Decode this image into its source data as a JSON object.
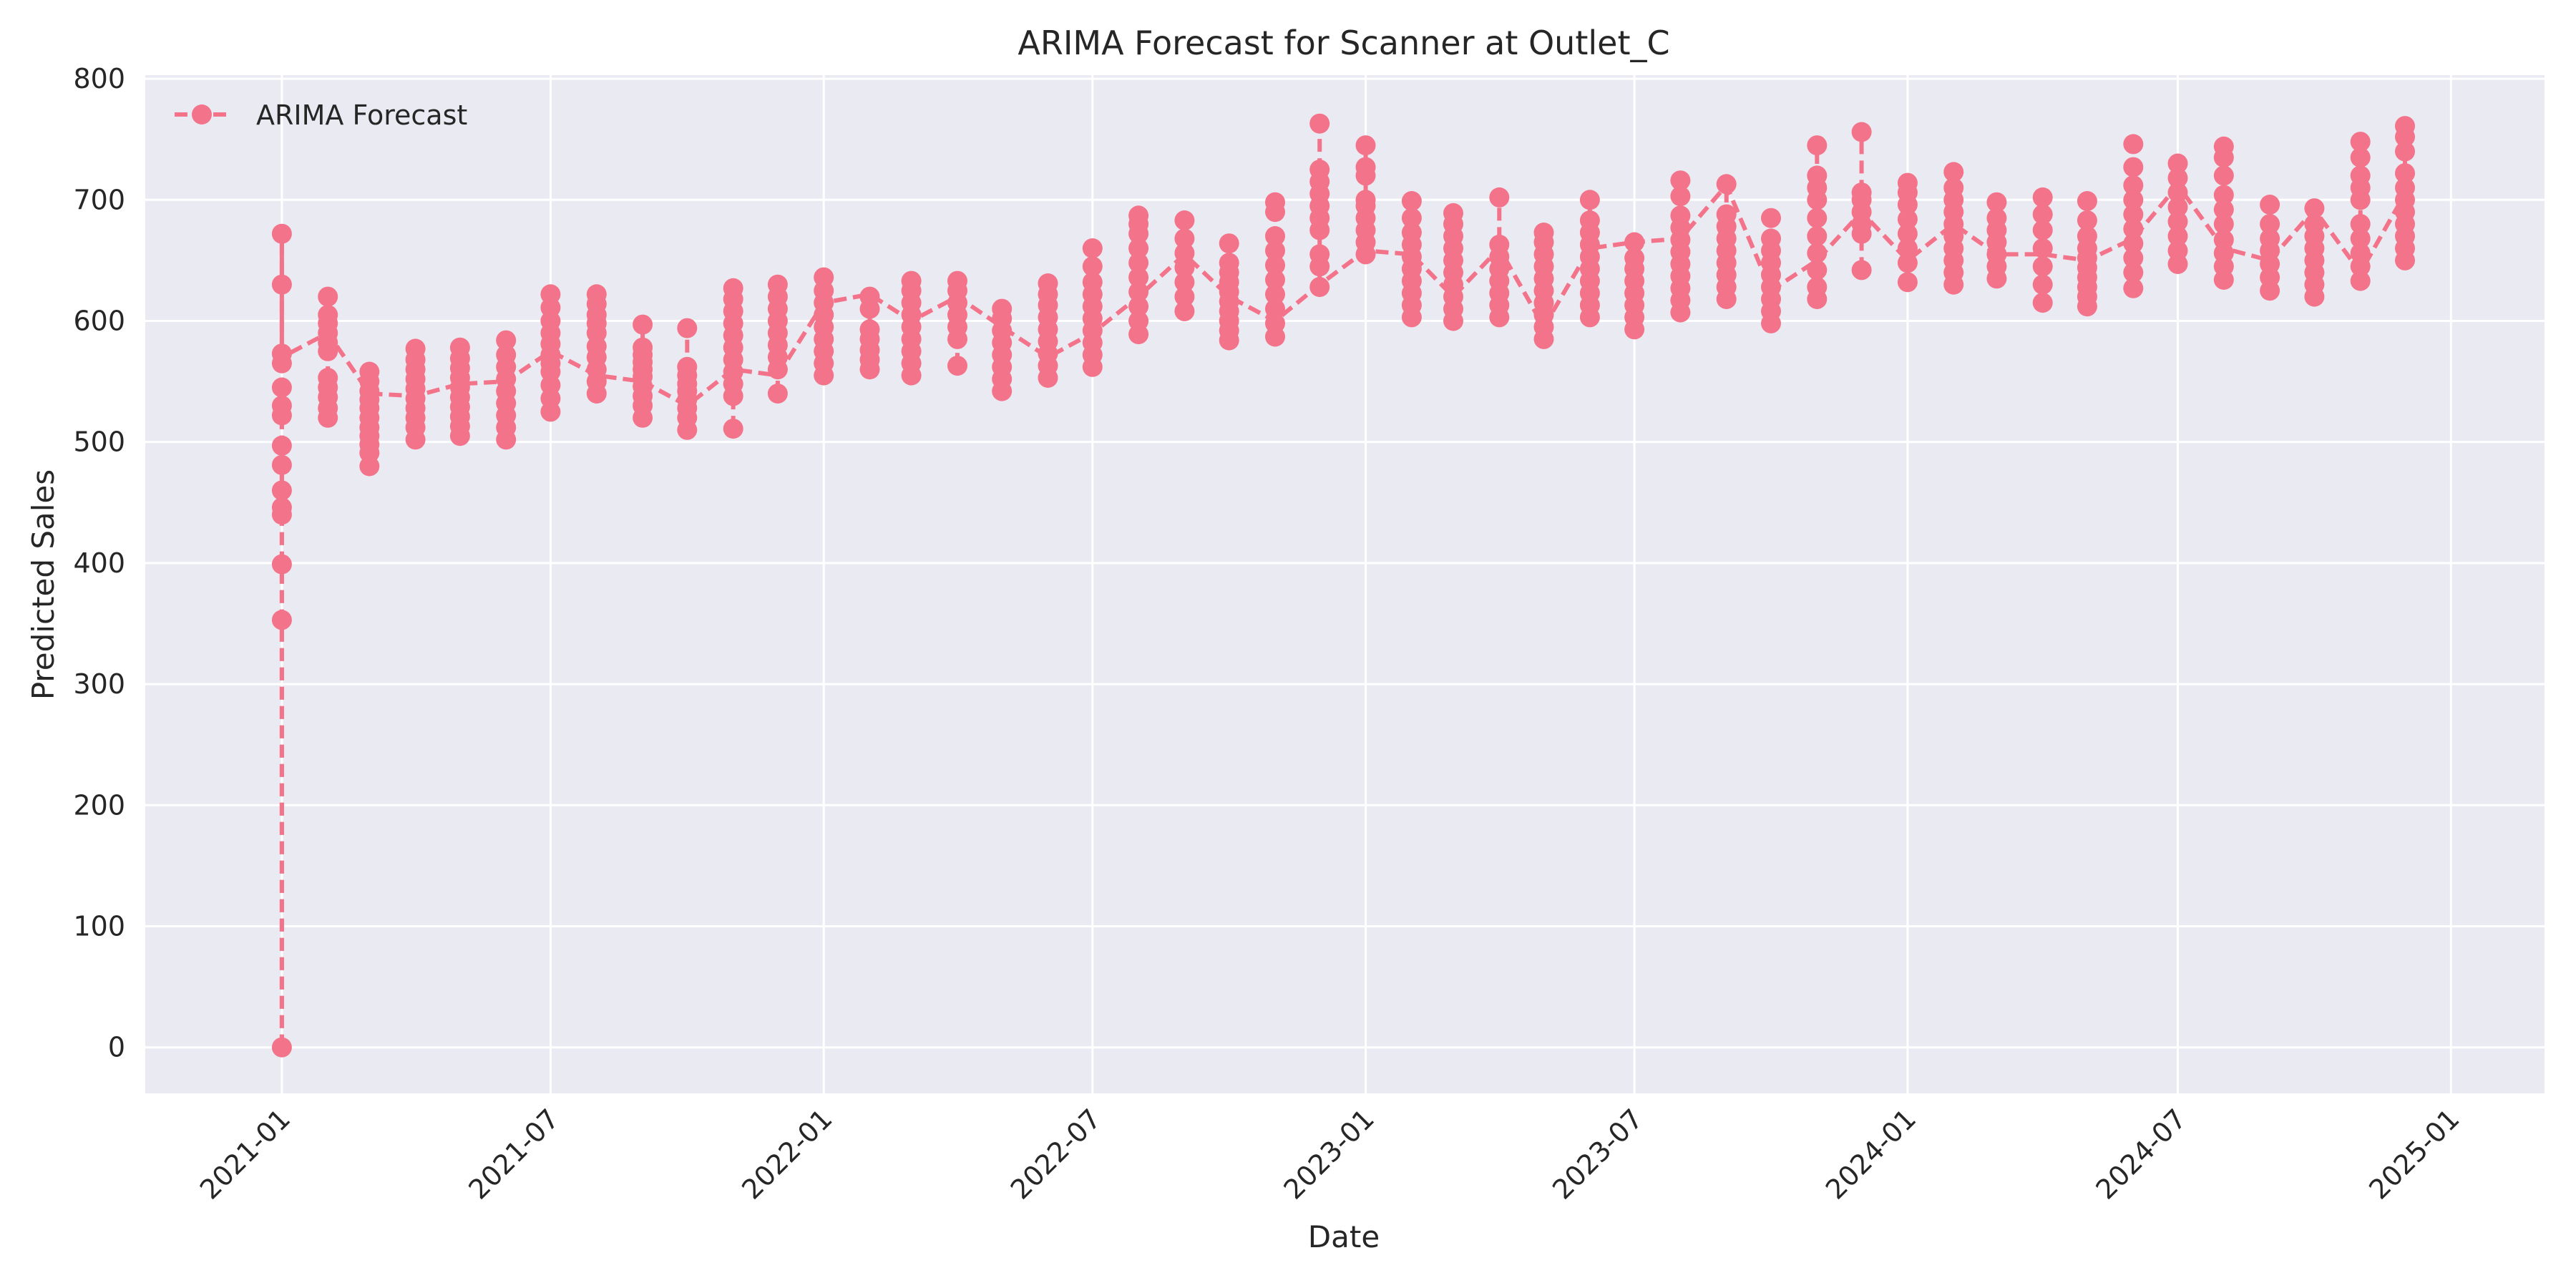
{
  "chart_data": {
    "type": "line",
    "title": "ARIMA Forecast for Scanner at Outlet_C",
    "xlabel": "Date",
    "ylabel": "Predicted Sales",
    "xlim": [
      "2020-10-01",
      "2025-03-05"
    ],
    "ylim": [
      -38,
      803
    ],
    "x_ticks": [
      "2021-01",
      "2021-07",
      "2022-01",
      "2022-07",
      "2023-01",
      "2023-07",
      "2024-01",
      "2024-07",
      "2025-01"
    ],
    "y_ticks": [
      0,
      100,
      200,
      300,
      400,
      500,
      600,
      700,
      800
    ],
    "grid": true,
    "legend_position": "top-left",
    "style": {
      "color": "#f3748a",
      "line": "dashed",
      "marker": "circle",
      "background": "#eaeaf2"
    },
    "series": [
      {
        "name": "ARIMA Forecast",
        "x": [
          "2021-01-01",
          "2021-02-01",
          "2021-03-01",
          "2021-04-01",
          "2021-05-01",
          "2021-06-01",
          "2021-07-01",
          "2021-08-01",
          "2021-09-01",
          "2021-10-01",
          "2021-11-01",
          "2021-12-01",
          "2022-01-01",
          "2022-02-01",
          "2022-03-01",
          "2022-04-01",
          "2022-05-01",
          "2022-06-01",
          "2022-07-01",
          "2022-08-01",
          "2022-09-01",
          "2022-10-01",
          "2022-11-01",
          "2022-12-01",
          "2023-01-01",
          "2023-02-01",
          "2023-03-01",
          "2023-04-01",
          "2023-05-01",
          "2023-06-01",
          "2023-07-01",
          "2023-08-01",
          "2023-09-01",
          "2023-10-01",
          "2023-11-01",
          "2023-12-01",
          "2024-01-01",
          "2024-02-01",
          "2024-03-01",
          "2024-04-01",
          "2024-05-01",
          "2024-06-01",
          "2024-07-01",
          "2024-08-01",
          "2024-09-01",
          "2024-10-01",
          "2024-11-01",
          "2024-12-01"
        ],
        "values": [
          [
            0,
            353,
            399,
            440,
            446,
            460,
            481,
            497,
            522,
            530,
            545,
            565,
            573,
            630,
            672
          ],
          [
            520,
            528,
            537,
            545,
            553,
            575,
            582,
            590,
            598,
            605,
            620
          ],
          [
            480,
            491,
            498,
            505,
            512,
            520,
            528,
            535,
            542,
            550,
            558
          ],
          [
            502,
            512,
            520,
            528,
            536,
            544,
            552,
            560,
            568,
            577
          ],
          [
            505,
            513,
            521,
            529,
            537,
            545,
            553,
            561,
            569,
            578
          ],
          [
            502,
            512,
            522,
            532,
            542,
            552,
            562,
            572,
            584
          ],
          [
            525,
            536,
            547,
            558,
            565,
            572,
            581,
            590,
            600,
            611,
            622
          ],
          [
            540,
            550,
            560,
            570,
            579,
            590,
            598,
            605,
            614,
            622
          ],
          [
            520,
            530,
            538,
            546,
            554,
            560,
            566,
            572,
            578,
            597
          ],
          [
            510,
            520,
            528,
            535,
            542,
            548,
            555,
            562,
            594
          ],
          [
            511,
            538,
            548,
            558,
            568,
            578,
            588,
            598,
            608,
            618,
            627
          ],
          [
            540,
            560,
            570,
            580,
            590,
            600,
            610,
            620,
            630
          ],
          [
            555,
            565,
            575,
            585,
            595,
            605,
            615,
            625,
            636
          ],
          [
            560,
            568,
            576,
            585,
            593,
            610,
            620
          ],
          [
            555,
            565,
            575,
            585,
            595,
            605,
            615,
            625,
            633
          ],
          [
            563,
            585,
            595,
            605,
            615,
            625,
            633
          ],
          [
            542,
            552,
            562,
            572,
            582,
            592,
            602,
            610
          ],
          [
            553,
            563,
            573,
            583,
            593,
            603,
            613,
            622,
            631
          ],
          [
            562,
            572,
            582,
            592,
            602,
            612,
            622,
            632,
            645,
            660
          ],
          [
            589,
            600,
            612,
            624,
            636,
            648,
            660,
            672,
            680,
            687
          ],
          [
            608,
            620,
            632,
            644,
            656,
            668,
            683
          ],
          [
            584,
            592,
            600,
            608,
            616,
            624,
            632,
            640,
            648,
            664
          ],
          [
            587,
            598,
            610,
            622,
            634,
            646,
            658,
            670,
            690,
            698
          ],
          [
            628,
            645,
            655,
            675,
            685,
            695,
            705,
            715,
            725,
            763
          ],
          [
            655,
            665,
            675,
            685,
            695,
            700,
            720,
            727,
            745
          ],
          [
            603,
            613,
            623,
            633,
            643,
            653,
            663,
            673,
            685,
            699
          ],
          [
            600,
            610,
            620,
            630,
            640,
            650,
            660,
            670,
            680,
            689
          ],
          [
            603,
            613,
            623,
            633,
            643,
            653,
            663,
            702
          ],
          [
            585,
            595,
            605,
            615,
            625,
            635,
            645,
            655,
            665,
            673
          ],
          [
            603,
            613,
            623,
            633,
            643,
            653,
            663,
            673,
            683,
            700
          ],
          [
            593,
            603,
            613,
            623,
            633,
            643,
            652,
            665
          ],
          [
            607,
            617,
            627,
            637,
            647,
            657,
            667,
            677,
            687,
            703,
            716
          ],
          [
            618,
            628,
            638,
            648,
            658,
            668,
            678,
            688,
            713
          ],
          [
            598,
            608,
            618,
            628,
            638,
            648,
            658,
            668,
            685
          ],
          [
            618,
            628,
            642,
            656,
            670,
            685,
            700,
            710,
            720,
            745
          ],
          [
            642,
            672,
            680,
            690,
            700,
            706,
            756
          ],
          [
            632,
            648,
            660,
            672,
            684,
            696,
            706,
            714
          ],
          [
            630,
            640,
            650,
            660,
            670,
            680,
            690,
            700,
            710,
            723
          ],
          [
            635,
            645,
            655,
            665,
            675,
            685,
            698
          ],
          [
            615,
            630,
            645,
            660,
            675,
            688,
            702
          ],
          [
            612,
            620,
            628,
            636,
            644,
            652,
            660,
            670,
            683,
            699
          ],
          [
            627,
            640,
            652,
            664,
            676,
            688,
            700,
            712,
            727,
            746
          ],
          [
            647,
            658,
            670,
            682,
            694,
            706,
            718,
            730
          ],
          [
            634,
            645,
            656,
            667,
            680,
            692,
            704,
            720,
            735,
            744
          ],
          [
            625,
            636,
            647,
            658,
            668,
            680,
            696
          ],
          [
            620,
            630,
            640,
            650,
            660,
            670,
            680,
            693
          ],
          [
            633,
            645,
            656,
            668,
            680,
            700,
            710,
            720,
            735,
            748
          ],
          [
            650,
            660,
            670,
            680,
            690,
            700,
            710,
            722,
            740,
            752,
            761
          ]
        ],
        "line_path": [
          [
            "2021-01-01",
            0
          ],
          [
            "2021-01-01",
            672
          ],
          [
            "2021-01-01",
            570
          ],
          [
            "2021-02-01",
            590
          ],
          [
            "2021-03-01",
            540
          ],
          [
            "2021-04-01",
            538
          ],
          [
            "2021-05-01",
            548
          ],
          [
            "2021-06-01",
            550
          ],
          [
            "2021-07-01",
            575
          ],
          [
            "2021-08-01",
            555
          ],
          [
            "2021-09-01",
            550
          ],
          [
            "2021-10-01",
            530
          ],
          [
            "2021-11-01",
            560
          ],
          [
            "2021-12-01",
            555
          ],
          [
            "2022-01-01",
            615
          ],
          [
            "2022-02-01",
            622
          ],
          [
            "2022-03-01",
            600
          ],
          [
            "2022-04-01",
            620
          ],
          [
            "2022-05-01",
            595
          ],
          [
            "2022-06-01",
            570
          ],
          [
            "2022-07-01",
            590
          ],
          [
            "2022-08-01",
            620
          ],
          [
            "2022-09-01",
            655
          ],
          [
            "2022-10-01",
            620
          ],
          [
            "2022-11-01",
            600
          ],
          [
            "2022-12-01",
            630
          ],
          [
            "2023-01-01",
            658
          ],
          [
            "2023-02-01",
            655
          ],
          [
            "2023-03-01",
            620
          ],
          [
            "2023-04-01",
            660
          ],
          [
            "2023-05-01",
            595
          ],
          [
            "2023-06-01",
            660
          ],
          [
            "2023-07-01",
            665
          ],
          [
            "2023-08-01",
            668
          ],
          [
            "2023-09-01",
            712
          ],
          [
            "2023-10-01",
            625
          ],
          [
            "2023-11-01",
            650
          ],
          [
            "2023-12-01",
            690
          ],
          [
            "2024-01-01",
            650
          ],
          [
            "2024-02-01",
            680
          ],
          [
            "2024-03-01",
            655
          ],
          [
            "2024-04-01",
            655
          ],
          [
            "2024-05-01",
            650
          ],
          [
            "2024-06-01",
            668
          ],
          [
            "2024-07-01",
            712
          ],
          [
            "2024-08-01",
            660
          ],
          [
            "2024-09-01",
            650
          ],
          [
            "2024-10-01",
            692
          ],
          [
            "2024-11-01",
            640
          ],
          [
            "2024-12-01",
            705
          ]
        ]
      }
    ]
  }
}
